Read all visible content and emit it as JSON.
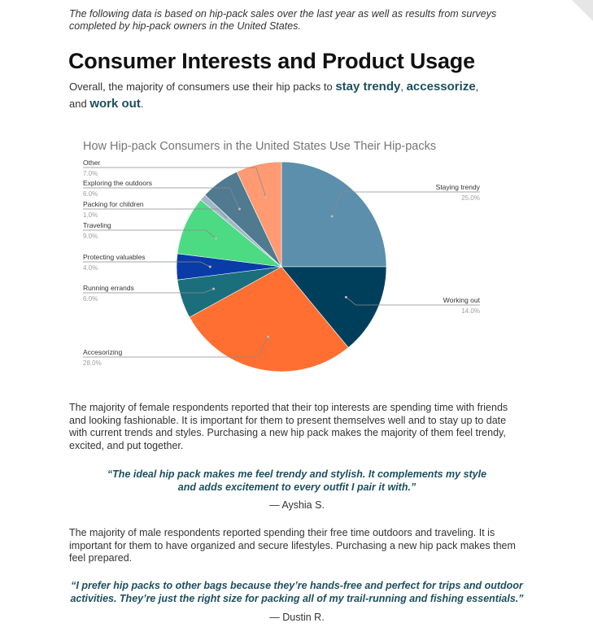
{
  "intro": "The following data is based on hip-pack sales over the last year as well as results from surveys completed by hip-pack owners in the United States.",
  "section": {
    "title": "Consumer Interests and Product Usage",
    "lead_before": "Overall, the majority of consumers use their hip packs to ",
    "hl1": "stay trendy",
    "sep1": ", ",
    "hl2": "accessorize",
    "sep2": ",",
    "lead_and": "and ",
    "hl3": "work out",
    "lead_end": "."
  },
  "chart_data": {
    "type": "pie",
    "title": "How Hip-pack Consumers in the United States Use Their Hip-packs",
    "slices": [
      {
        "label": "Staying trendy",
        "value": 25.0,
        "pct_label": "25.0%",
        "color": "#5b8fab"
      },
      {
        "label": "Working out",
        "value": 14.0,
        "pct_label": "14.0%",
        "color": "#003f5c"
      },
      {
        "label": "Accesorizing",
        "value": 28.0,
        "pct_label": "28.0%",
        "color": "#ff6f31"
      },
      {
        "label": "Running errands",
        "value": 6.0,
        "pct_label": "6.0%",
        "color": "#1b6f7d"
      },
      {
        "label": "Protecting valuables",
        "value": 4.0,
        "pct_label": "4.0%",
        "color": "#0a3ca8"
      },
      {
        "label": "Traveling",
        "value": 9.0,
        "pct_label": "9.0%",
        "color": "#4cdb83"
      },
      {
        "label": "Packing for children",
        "value": 1.0,
        "pct_label": "1.0%",
        "color": "#a0b8c8"
      },
      {
        "label": "Exploring the outdoors",
        "value": 6.0,
        "pct_label": "6.0%",
        "color": "#4f7a8f"
      },
      {
        "label": "Other",
        "value": 7.0,
        "pct_label": "7.0%",
        "color": "#ff9a72"
      }
    ]
  },
  "female": {
    "paragraph": "The majority of female respondents reported that their top interests are spending time with friends and looking fashionable. It is important for them to present themselves well and to stay up to date with current trends and styles. Purchasing a new hip pack makes the majority of them feel trendy, excited, and put together.",
    "quote_line1": "“The ideal hip pack makes me feel trendy and stylish. It complements my style",
    "quote_line2": "and adds excitement to every outfit I pair it with.”",
    "author": "— Ayshia S."
  },
  "male": {
    "paragraph": "The majority of male respondents reported spending their free time outdoors and traveling. It is important for them to have organized and secure lifestyles. Purchasing a new hip pack makes them feel prepared.",
    "quote_line1": "“I prefer hip packs to other bags because they’re hands-free and perfect for trips and outdoor",
    "quote_line2": "activities. They’re just the right size for packing all of my trail-running and fishing essentials.”",
    "author": "— Dustin R."
  }
}
